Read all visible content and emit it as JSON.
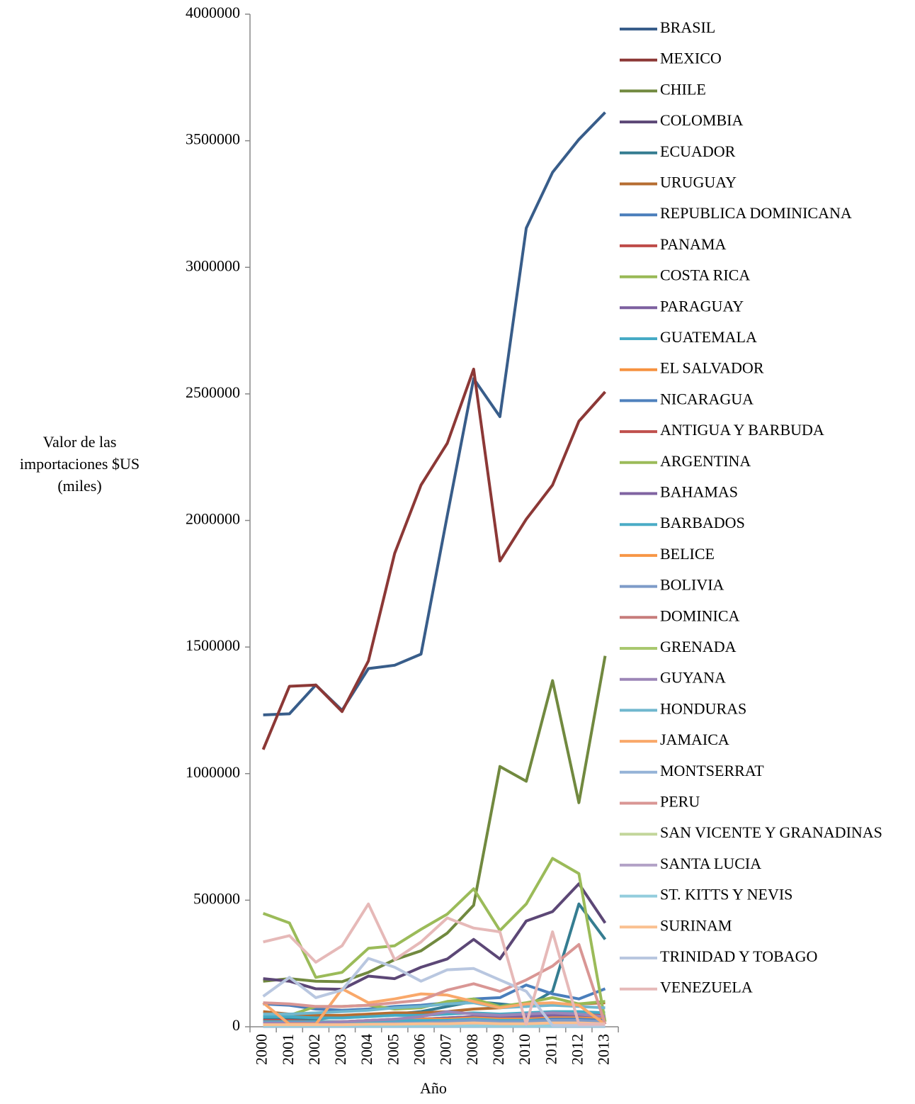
{
  "chart_data": {
    "type": "line",
    "ylabel": "Valor de las importaciones $US (miles)",
    "xlabel": "Año",
    "categories": [
      "2000",
      "2001",
      "2002",
      "2003",
      "2004",
      "2005",
      "2006",
      "2007",
      "2008",
      "2009",
      "2010",
      "2011",
      "2012",
      "2013"
    ],
    "ylim": [
      0,
      4000000
    ],
    "yticks": [
      0,
      500000,
      1000000,
      1500000,
      2000000,
      2500000,
      3000000,
      3500000,
      4000000
    ],
    "series": [
      {
        "name": "BRASIL",
        "color": "#385D8A",
        "values": [
          1232000,
          1236000,
          1350000,
          1250000,
          1415000,
          1428000,
          1472000,
          2020000,
          2560000,
          2410000,
          3155000,
          3375000,
          3505000,
          3612000
        ]
      },
      {
        "name": "MEXICO",
        "color": "#8C3836",
        "values": [
          1095000,
          1345000,
          1350000,
          1245000,
          1445000,
          1870000,
          2140000,
          2305000,
          2598000,
          1840000,
          2005000,
          2140000,
          2392000,
          2508000
        ]
      },
      {
        "name": "CHILE",
        "color": "#71893F",
        "values": [
          180000,
          190000,
          180000,
          178000,
          215000,
          265000,
          300000,
          370000,
          480000,
          1028000,
          970000,
          1367000,
          885000,
          1465000
        ]
      },
      {
        "name": "COLOMBIA",
        "color": "#5C4776",
        "values": [
          190000,
          180000,
          150000,
          148000,
          200000,
          190000,
          235000,
          268000,
          345000,
          268000,
          418000,
          455000,
          565000,
          410000
        ]
      },
      {
        "name": "ECUADOR",
        "color": "#357D91",
        "values": [
          30000,
          30000,
          30000,
          40000,
          45000,
          50000,
          60000,
          80000,
          100000,
          90000,
          80000,
          140000,
          485000,
          345000
        ]
      },
      {
        "name": "URUGUAY",
        "color": "#B66D31",
        "values": [
          60000,
          50000,
          45000,
          45000,
          50000,
          55000,
          55000,
          60000,
          70000,
          75000,
          85000,
          90000,
          90000,
          95000
        ]
      },
      {
        "name": "REPUBLICA DOMINICANA",
        "color": "#4A7EBB",
        "values": [
          90000,
          85000,
          70000,
          65000,
          70000,
          80000,
          85000,
          95000,
          110000,
          115000,
          165000,
          130000,
          110000,
          150000
        ]
      },
      {
        "name": "PANAMA",
        "color": "#BE4B48",
        "values": [
          25000,
          25000,
          20000,
          20000,
          25000,
          30000,
          30000,
          35000,
          40000,
          35000,
          40000,
          50000,
          45000,
          50000
        ]
      },
      {
        "name": "COSTA RICA",
        "color": "#98B954",
        "values": [
          40000,
          45000,
          80000,
          80000,
          85000,
          70000,
          75000,
          100000,
          110000,
          80000,
          95000,
          115000,
          90000,
          100000
        ]
      },
      {
        "name": "PARAGUAY",
        "color": "#7D60A0",
        "values": [
          20000,
          20000,
          15000,
          15000,
          20000,
          25000,
          30000,
          35000,
          40000,
          35000,
          40000,
          45000,
          45000,
          40000
        ]
      },
      {
        "name": "GUATEMALA",
        "color": "#46AAC5",
        "values": [
          40000,
          40000,
          35000,
          35000,
          40000,
          45000,
          45000,
          50000,
          55000,
          50000,
          55000,
          60000,
          60000,
          55000
        ]
      },
      {
        "name": "EL SALVADOR",
        "color": "#F69240",
        "values": [
          20000,
          20000,
          20000,
          20000,
          25000,
          25000,
          30000,
          30000,
          35000,
          30000,
          30000,
          35000,
          35000,
          30000
        ]
      },
      {
        "name": "NICARAGUA",
        "color": "#4F81BD",
        "values": [
          15000,
          15000,
          15000,
          15000,
          20000,
          20000,
          20000,
          25000,
          25000,
          20000,
          25000,
          30000,
          30000,
          25000
        ]
      },
      {
        "name": "ANTIGUA Y BARBUDA",
        "color": "#C0504D",
        "values": [
          2000,
          2000,
          2000,
          2000,
          2000,
          2000,
          3000,
          3000,
          3000,
          2000,
          2000,
          2000,
          2000,
          2000
        ]
      },
      {
        "name": "ARGENTINA",
        "color": "#9BBB59",
        "values": [
          448000,
          410000,
          195000,
          215000,
          310000,
          320000,
          385000,
          445000,
          545000,
          380000,
          485000,
          665000,
          605000,
          20000
        ]
      },
      {
        "name": "BAHAMAS",
        "color": "#8064A2",
        "values": [
          10000,
          10000,
          10000,
          10000,
          15000,
          15000,
          15000,
          20000,
          20000,
          15000,
          15000,
          20000,
          20000,
          15000
        ]
      },
      {
        "name": "BARBADOS",
        "color": "#4BACC6",
        "values": [
          20000,
          20000,
          20000,
          20000,
          20000,
          25000,
          25000,
          25000,
          30000,
          25000,
          25000,
          25000,
          25000,
          20000
        ]
      },
      {
        "name": "BELICE",
        "color": "#F79646",
        "values": [
          5000,
          5000,
          5000,
          5000,
          5000,
          5000,
          6000,
          6000,
          7000,
          6000,
          6000,
          7000,
          7000,
          6000
        ]
      },
      {
        "name": "BOLIVIA",
        "color": "#7E9BC8",
        "values": [
          10000,
          10000,
          10000,
          10000,
          10000,
          15000,
          15000,
          20000,
          25000,
          20000,
          20000,
          25000,
          25000,
          20000
        ]
      },
      {
        "name": "DOMINICA",
        "color": "#C77C7B",
        "values": [
          3000,
          3000,
          3000,
          3000,
          3000,
          3000,
          4000,
          4000,
          4000,
          3000,
          3000,
          3000,
          3000,
          3000
        ]
      },
      {
        "name": "GRENADA",
        "color": "#A9C86F",
        "values": [
          3000,
          3000,
          3000,
          3000,
          3000,
          4000,
          4000,
          4000,
          4000,
          3000,
          3000,
          3000,
          3000,
          3000
        ]
      },
      {
        "name": "GUYANA",
        "color": "#9C86B7",
        "values": [
          15000,
          15000,
          15000,
          20000,
          25000,
          30000,
          40000,
          60000,
          50000,
          45000,
          50000,
          55000,
          50000,
          40000
        ]
      },
      {
        "name": "HONDURAS",
        "color": "#70B7CE",
        "values": [
          50000,
          50000,
          55000,
          60000,
          65000,
          75000,
          80000,
          90000,
          95000,
          75000,
          80000,
          85000,
          80000,
          75000
        ]
      },
      {
        "name": "JAMAICA",
        "color": "#F9A86A",
        "values": [
          95000,
          10000,
          10000,
          150000,
          95000,
          110000,
          130000,
          125000,
          100000,
          75000,
          90000,
          95000,
          85000,
          10000
        ]
      },
      {
        "name": "MONTSERRAT",
        "color": "#95B3D7",
        "values": [
          1000,
          1000,
          1000,
          1000,
          1000,
          1000,
          1000,
          1000,
          1000,
          1000,
          1000,
          1000,
          1000,
          1000
        ]
      },
      {
        "name": "PERU",
        "color": "#D99694",
        "values": [
          95000,
          90000,
          80000,
          80000,
          85000,
          95000,
          105000,
          145000,
          170000,
          140000,
          185000,
          240000,
          325000,
          10000
        ]
      },
      {
        "name": "SAN VICENTE Y GRANADINAS",
        "color": "#C3D69B",
        "values": [
          3000,
          3000,
          3000,
          3000,
          3000,
          4000,
          4000,
          4000,
          4000,
          3000,
          3000,
          3000,
          3000,
          3000
        ]
      },
      {
        "name": "SANTA LUCIA",
        "color": "#B3A2C7",
        "values": [
          5000,
          5000,
          5000,
          5000,
          6000,
          6000,
          7000,
          7000,
          8000,
          7000,
          7000,
          7000,
          7000,
          6000
        ]
      },
      {
        "name": "ST. KITTS Y NEVIS",
        "color": "#93CDDD",
        "values": [
          3000,
          3000,
          3000,
          3000,
          3000,
          3000,
          4000,
          4000,
          4000,
          3000,
          3000,
          3000,
          3000,
          3000
        ]
      },
      {
        "name": "SURINAM",
        "color": "#FAC090",
        "values": [
          8000,
          8000,
          8000,
          8000,
          10000,
          10000,
          12000,
          12000,
          15000,
          12000,
          12000,
          15000,
          15000,
          12000
        ]
      },
      {
        "name": "TRINIDAD Y TOBAGO",
        "color": "#B9C7E0",
        "values": [
          120000,
          195000,
          115000,
          145000,
          270000,
          235000,
          180000,
          225000,
          230000,
          185000,
          140000,
          5000,
          5000,
          5000
        ]
      },
      {
        "name": "VENEZUELA",
        "color": "#E6B9B8",
        "values": [
          335000,
          360000,
          255000,
          320000,
          485000,
          265000,
          335000,
          430000,
          390000,
          375000,
          10000,
          375000,
          10000,
          10000
        ]
      }
    ]
  }
}
